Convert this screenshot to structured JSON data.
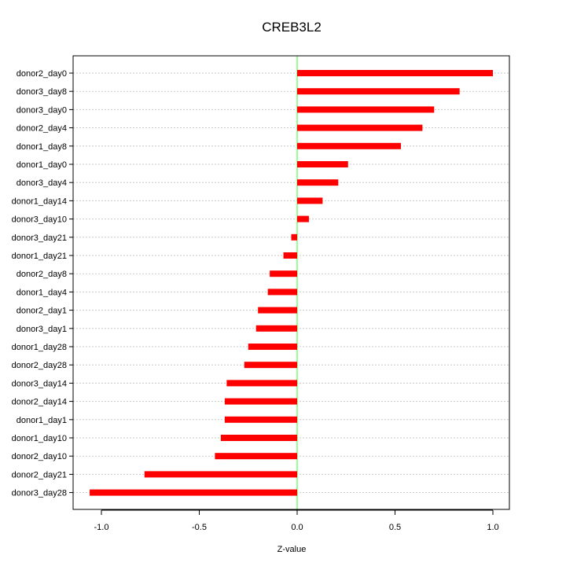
{
  "chart_data": {
    "type": "bar",
    "orientation": "horizontal",
    "title": "CREB3L2",
    "xlabel": "Z-value",
    "ylabel": "",
    "xlim": [
      -1.1,
      1.08
    ],
    "xticks": [
      -1.0,
      -0.5,
      0.0,
      0.5,
      1.0
    ],
    "xtick_labels": [
      "-1.0",
      "-0.5",
      "0.0",
      "0.5",
      "1.0"
    ],
    "grid": true,
    "zero_line": true,
    "categories": [
      "donor2_day0",
      "donor3_day8",
      "donor3_day0",
      "donor2_day4",
      "donor1_day8",
      "donor1_day0",
      "donor3_day4",
      "donor1_day14",
      "donor3_day10",
      "donor3_day21",
      "donor1_day21",
      "donor2_day8",
      "donor1_day4",
      "donor2_day1",
      "donor3_day1",
      "donor1_day28",
      "donor2_day28",
      "donor3_day14",
      "donor2_day14",
      "donor1_day1",
      "donor1_day10",
      "donor2_day10",
      "donor2_day21",
      "donor3_day28"
    ],
    "values": [
      1.0,
      0.83,
      0.7,
      0.64,
      0.53,
      0.26,
      0.21,
      0.13,
      0.06,
      -0.03,
      -0.07,
      -0.14,
      -0.15,
      -0.2,
      -0.21,
      -0.25,
      -0.27,
      -0.36,
      -0.37,
      -0.37,
      -0.39,
      -0.42,
      -0.78,
      -1.06
    ],
    "colors": {
      "bar": "#ff0000",
      "zero_line": "#33ff33",
      "grid": "#c8c8c8",
      "axis": "#000000"
    }
  }
}
